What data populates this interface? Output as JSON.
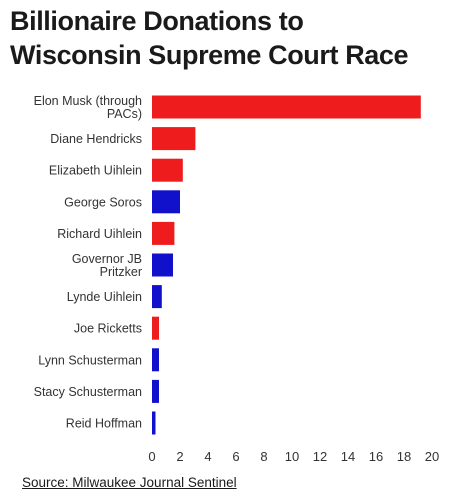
{
  "header": {
    "title_line1": "Billionaire Donations to",
    "title_line2": "Wisconsin Supreme Court Race"
  },
  "source": "Source: Milwaukee Journal Sentinel",
  "colors": {
    "red": "#ee1c1c",
    "blue": "#1111cc"
  },
  "chart_data": {
    "type": "bar",
    "orientation": "horizontal",
    "title": "Billionaire Donations to Wisconsin Supreme Court Race",
    "xlabel": "",
    "ylabel": "",
    "xlim": [
      0,
      20
    ],
    "xticks": [
      0,
      2,
      4,
      6,
      8,
      10,
      12,
      14,
      16,
      18,
      20
    ],
    "grid": false,
    "bars": [
      {
        "label_lines": [
          "Elon Musk (through",
          "PACs)"
        ],
        "value": 19.2,
        "color": "red"
      },
      {
        "label_lines": [
          "Diane Hendricks"
        ],
        "value": 3.1,
        "color": "red"
      },
      {
        "label_lines": [
          "Elizabeth Uihlein"
        ],
        "value": 2.2,
        "color": "red"
      },
      {
        "label_lines": [
          "George Soros"
        ],
        "value": 2.0,
        "color": "blue"
      },
      {
        "label_lines": [
          "Richard Uihlein"
        ],
        "value": 1.6,
        "color": "red"
      },
      {
        "label_lines": [
          "Governor JB",
          "Pritzker"
        ],
        "value": 1.5,
        "color": "blue"
      },
      {
        "label_lines": [
          "Lynde Uihlein"
        ],
        "value": 0.7,
        "color": "blue"
      },
      {
        "label_lines": [
          "Joe Ricketts"
        ],
        "value": 0.5,
        "color": "red"
      },
      {
        "label_lines": [
          "Lynn Schusterman"
        ],
        "value": 0.5,
        "color": "blue"
      },
      {
        "label_lines": [
          "Stacy Schusterman"
        ],
        "value": 0.5,
        "color": "blue"
      },
      {
        "label_lines": [
          "Reid Hoffman"
        ],
        "value": 0.25,
        "color": "blue"
      }
    ]
  }
}
